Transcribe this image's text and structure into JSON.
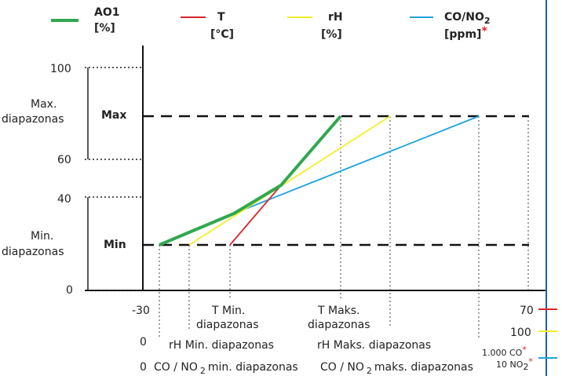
{
  "legend": {
    "ao1": {
      "line1": "AO1",
      "line2": "[%]",
      "color": "#2fa84f"
    },
    "t": {
      "line1": "T",
      "line2": "[°C]",
      "color": "#d8262a"
    },
    "rh": {
      "line1": "rH",
      "line2": "[%]",
      "color": "#f2ef2a"
    },
    "co": {
      "line1": "CO/NO",
      "sub": "2",
      "line2": "[ppm]",
      "star": "*",
      "color": "#1ea3dc"
    }
  },
  "y_axis": {
    "ticks": [
      "100",
      "60",
      "40",
      "0"
    ],
    "max_label": [
      "Max.",
      "diapazonas"
    ],
    "min_label": [
      "Min.",
      "diapazonas"
    ],
    "max_text": "Max",
    "min_text": "Min"
  },
  "x_axis": {
    "t_min": "-30",
    "t_max": "70",
    "t_min_label": [
      "T Min.",
      "diapazonas"
    ],
    "t_max_label": [
      "T Maks.",
      "diapazonas"
    ],
    "rh_min": "0",
    "rh_max": "100",
    "rh_min_label": "rH Min. diapazonas",
    "rh_max_label": "rH Maks. diapazonas",
    "co_min": "0",
    "co_min_label": "CO / NO",
    "co_min_label_rest": "min. diapazonas",
    "co_max_label": "CO / NO",
    "co_max_label_rest": "maks. diapazonas",
    "co_max": "1.000 CO",
    "no2_max": "10 NO",
    "sub": "2",
    "star": "*"
  }
}
